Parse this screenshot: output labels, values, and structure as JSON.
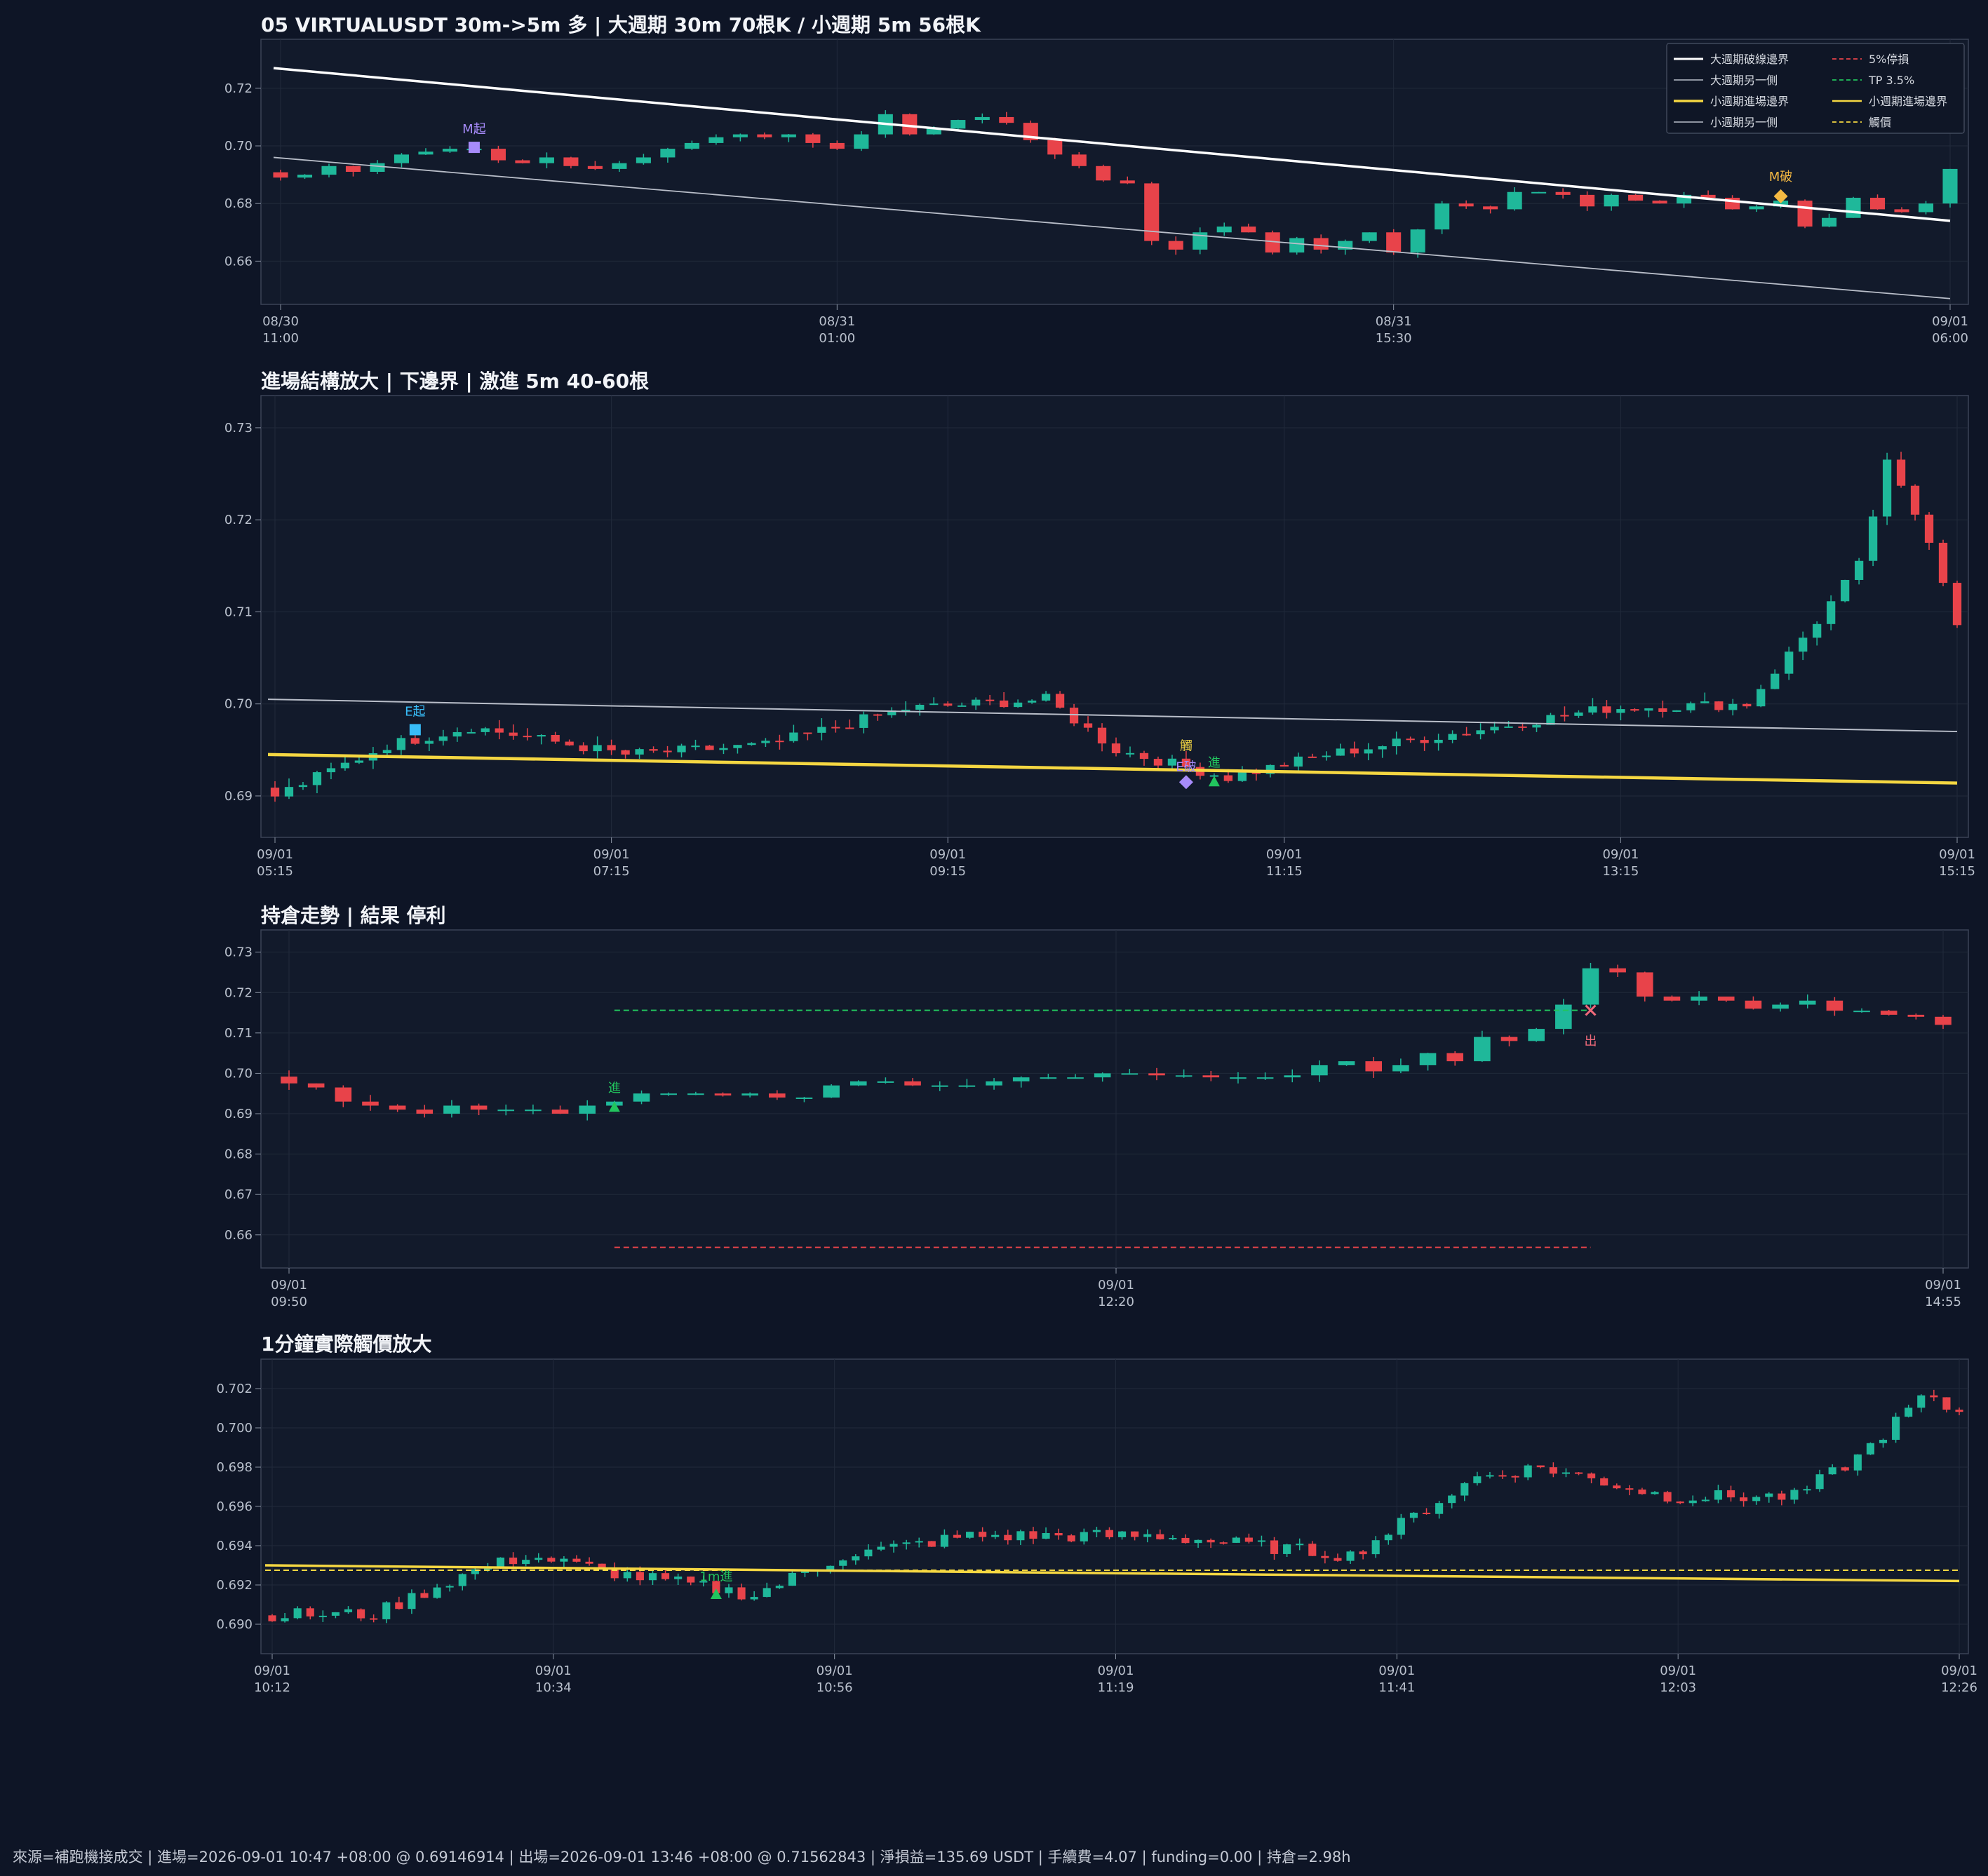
{
  "panels": {
    "p1_title": "05 VIRTUALUSDT 30m->5m 多 | 大週期 30m 70根K / 小週期 5m 56根K",
    "p2_title": "進場結構放大 | 下邊界 | 激進 5m 40-60根",
    "p3_title": "持倉走勢 | 結果 停利",
    "p4_title": "1分鐘實際觸價放大"
  },
  "legend": {
    "big_break": "大週期破線邊界",
    "big_other": "大週期另一側",
    "small_entry": "小週期進場邊界",
    "small_other": "小週期另一側",
    "stop": "5%停損",
    "tp": "TP 3.5%",
    "small_entry2": "小週期進場邊界",
    "trigger": "觸價"
  },
  "colors": {
    "background": "#0e1526",
    "up": "#1fb89a",
    "down": "#e8434a",
    "big_break": "#ffffff",
    "big_other": "#b9bec9",
    "small_entry": "#f5d742",
    "stop": "#e8434a",
    "tp": "#22c55e",
    "trigger": "#f5d742",
    "m_start": "#a78bfa",
    "e_start": "#38bdf8",
    "m_break": "#f5b942",
    "entry": "#22c55e"
  },
  "footer": {
    "text": "來源=補跑機接成交 | 進場=2026-09-01 10:47 +08:00 @ 0.69146914 | 出場=2026-09-01 13:46 +08:00 @ 0.71562843 | 淨損益=135.69 USDT | 手續費=4.07 | funding=0.00 | 持倉=2.98h"
  },
  "chart_data": [
    {
      "type": "candlestick",
      "title": "05 VIRTUALUSDT 30m->5m 多 | 大週期 30m 70根K / 小週期 5m 56根K",
      "x_ticks": [
        [
          "08/30",
          "11:00"
        ],
        [
          "08/31",
          "01:00"
        ],
        [
          "08/31",
          "15:30"
        ],
        [
          "09/01",
          "06:00"
        ]
      ],
      "y_ticks": [
        "0.66",
        "0.68",
        "0.70",
        "0.72"
      ],
      "ylim": [
        0.645,
        0.737
      ],
      "n_bars": 70,
      "closes": [
        0.689,
        0.69,
        0.693,
        0.691,
        0.694,
        0.697,
        0.698,
        0.699,
        0.699,
        0.695,
        0.694,
        0.696,
        0.693,
        0.692,
        0.694,
        0.696,
        0.699,
        0.701,
        0.703,
        0.704,
        0.703,
        0.704,
        0.701,
        0.699,
        0.704,
        0.711,
        0.704,
        0.706,
        0.709,
        0.71,
        0.708,
        0.702,
        0.697,
        0.693,
        0.688,
        0.687,
        0.667,
        0.664,
        0.67,
        0.672,
        0.67,
        0.663,
        0.668,
        0.664,
        0.667,
        0.67,
        0.663,
        0.671,
        0.68,
        0.679,
        0.678,
        0.684,
        0.684,
        0.683,
        0.679,
        0.683,
        0.681,
        0.68,
        0.683,
        0.682,
        0.678,
        0.679,
        0.681,
        0.672,
        0.675,
        0.682,
        0.678,
        0.677,
        0.68,
        0.692
      ],
      "trend_lines": [
        {
          "name": "大週期破線邊界",
          "from": 0.727,
          "to": 0.674
        },
        {
          "name": "大週期另一側",
          "from": 0.696,
          "to": 0.647
        }
      ],
      "markers": [
        {
          "label": "M起",
          "bar": 8,
          "value": 0.6995
        },
        {
          "label": "M破",
          "bar": 62,
          "value": 0.6825
        }
      ]
    },
    {
      "type": "candlestick",
      "title": "進場結構放大 | 下邊界 | 激進 5m 40-60根",
      "x_ticks": [
        [
          "09/01",
          "05:15"
        ],
        [
          "09/01",
          "07:15"
        ],
        [
          "09/01",
          "09:15"
        ],
        [
          "09/01",
          "11:15"
        ],
        [
          "09/01",
          "13:15"
        ],
        [
          "09/01",
          "15:15"
        ]
      ],
      "y_ticks": [
        "0.69",
        "0.70",
        "0.71",
        "0.72",
        "0.73"
      ],
      "ylim": [
        0.6855,
        0.7335
      ],
      "n_bars": 121,
      "trend_lines": [
        {
          "name": "小週期另一側",
          "from": 0.7005,
          "to": 0.697
        },
        {
          "name": "小週期進場邊界",
          "from": 0.6945,
          "to": 0.6914
        }
      ],
      "markers": [
        {
          "label": "E起",
          "bar": 10,
          "value": 0.6972
        },
        {
          "label": "觸",
          "bar": 65,
          "value": 0.6936
        },
        {
          "label": "E破",
          "bar": 65,
          "value": 0.6915
        },
        {
          "label": "進",
          "bar": 67,
          "value": 0.6915
        }
      ]
    },
    {
      "type": "candlestick",
      "title": "持倉走勢 | 結果 停利",
      "x_ticks": [
        [
          "09/01",
          "09:50"
        ],
        [
          "09/01",
          "12:20"
        ],
        [
          "09/01",
          "14:55"
        ]
      ],
      "y_ticks": [
        "0.66",
        "0.67",
        "0.68",
        "0.69",
        "0.70",
        "0.71",
        "0.72",
        "0.73"
      ],
      "ylim": [
        0.6518,
        0.7355
      ],
      "n_bars": 62,
      "closes": [
        0.6975,
        0.6965,
        0.693,
        0.692,
        0.691,
        0.69,
        0.692,
        0.691,
        0.691,
        0.691,
        0.69,
        0.692,
        0.693,
        0.695,
        0.695,
        0.695,
        0.6945,
        0.695,
        0.694,
        0.694,
        0.697,
        0.698,
        0.698,
        0.697,
        0.697,
        0.697,
        0.698,
        0.699,
        0.699,
        0.699,
        0.7,
        0.7,
        0.6995,
        0.6995,
        0.699,
        0.699,
        0.699,
        0.6995,
        0.702,
        0.703,
        0.7005,
        0.702,
        0.705,
        0.703,
        0.709,
        0.708,
        0.711,
        0.717,
        0.726,
        0.725,
        0.719,
        0.718,
        0.719,
        0.718,
        0.716,
        0.717,
        0.718,
        0.7155,
        0.7155,
        0.7145,
        0.714,
        0.712
      ],
      "hlines": [
        {
          "name": "TP 3.5%",
          "value": 0.7156
        },
        {
          "name": "5%停損",
          "value": 0.6569
        }
      ],
      "markers": [
        {
          "label": "進",
          "bar": 12,
          "value": 0.6915
        },
        {
          "label": "出",
          "bar": 48,
          "value": 0.7156
        }
      ]
    },
    {
      "type": "candlestick",
      "title": "1分鐘實際觸價放大",
      "x_ticks": [
        [
          "09/01",
          "10:12"
        ],
        [
          "09/01",
          "10:34"
        ],
        [
          "09/01",
          "10:56"
        ],
        [
          "09/01",
          "11:19"
        ],
        [
          "09/01",
          "11:41"
        ],
        [
          "09/01",
          "12:03"
        ],
        [
          "09/01",
          "12:26"
        ]
      ],
      "y_ticks": [
        "0.690",
        "0.692",
        "0.694",
        "0.696",
        "0.698",
        "0.700",
        "0.702"
      ],
      "ylim": [
        0.6885,
        0.7035
      ],
      "n_bars": 134,
      "trend_lines": [
        {
          "name": "小週期進場邊界",
          "from": 0.693,
          "to": 0.6922
        }
      ],
      "hlines": [
        {
          "name": "觸價",
          "value": 0.69275
        }
      ],
      "markers": [
        {
          "label": "1m進",
          "bar": 35,
          "value": 0.6915
        }
      ]
    }
  ]
}
